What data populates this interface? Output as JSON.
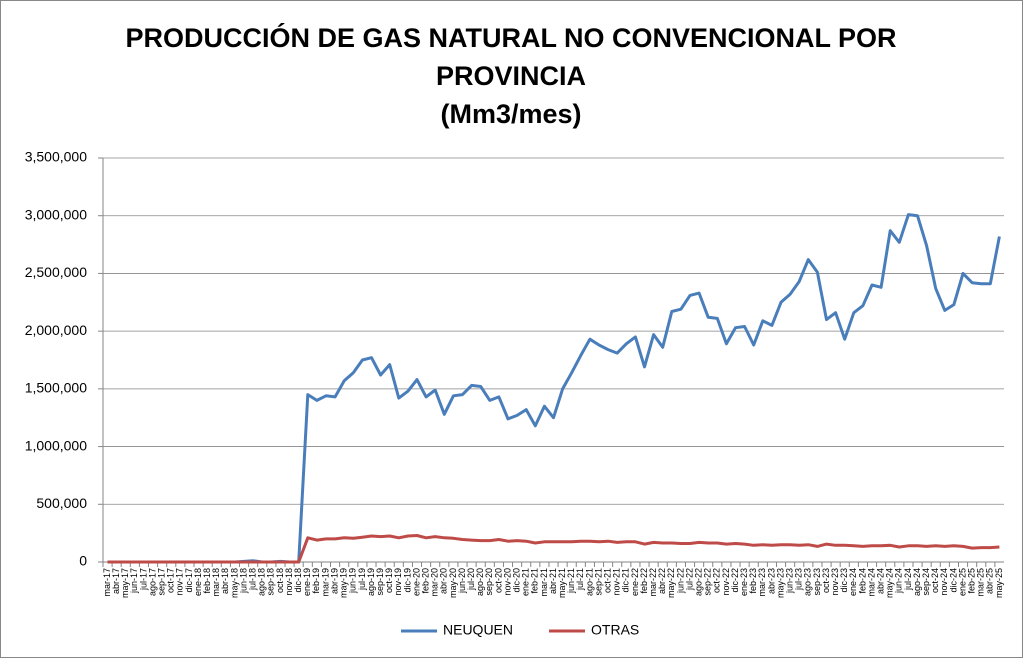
{
  "chart_data": {
    "type": "line",
    "title": "PRODUCCIÓN DE GAS NATURAL NO CONVENCIONAL POR PROVINCIA",
    "subtitle": "(Mm3/mes)",
    "categories": [
      "mar-17",
      "abr-17",
      "may-17",
      "jun-17",
      "jul-17",
      "ago-17",
      "sep-17",
      "oct-17",
      "nov-17",
      "dic-17",
      "ene-18",
      "feb-18",
      "mar-18",
      "abr-18",
      "may-18",
      "jun-18",
      "jul-18",
      "ago-18",
      "sep-18",
      "oct-18",
      "nov-18",
      "dic-18",
      "ene-19",
      "feb-19",
      "mar-19",
      "abr-19",
      "may-19",
      "jun-19",
      "jul-19",
      "ago-19",
      "sep-19",
      "oct-19",
      "nov-19",
      "dic-19",
      "ene-20",
      "feb-20",
      "mar-20",
      "abr-20",
      "may-20",
      "jun-20",
      "jul-20",
      "ago-20",
      "sep-20",
      "oct-20",
      "nov-20",
      "dic-20",
      "ene-21",
      "feb-21",
      "mar-21",
      "abr-21",
      "may-21",
      "jun-21",
      "jul-21",
      "ago-21",
      "sep-21",
      "oct-21",
      "nov-21",
      "dic-21",
      "ene-22",
      "feb-22",
      "mar-22",
      "abr-22",
      "may-22",
      "jun-22",
      "jul-22",
      "ago-22",
      "sep-22",
      "oct-22",
      "nov-22",
      "dic-22",
      "ene-23",
      "feb-23",
      "mar-23",
      "abr-23",
      "may-23",
      "jun-23",
      "jul-23",
      "ago-23",
      "sep-23",
      "oct-23",
      "nov-23",
      "dic-23",
      "ene-24",
      "feb-24",
      "mar-24",
      "abr-24",
      "may-24",
      "jun-24",
      "jul-24",
      "ago-24",
      "sep-24",
      "oct-24",
      "nov-24",
      "dic-24",
      "ene-25",
      "feb-25",
      "mar-25",
      "abr-25",
      "may-25"
    ],
    "series": [
      {
        "name": "NEUQUEN",
        "color": "#4a7ebb",
        "values": [
          0,
          0,
          0,
          0,
          0,
          0,
          0,
          0,
          0,
          0,
          0,
          0,
          0,
          0,
          0,
          5000,
          10000,
          0,
          0,
          5000,
          0,
          0,
          1450000,
          1400000,
          1440000,
          1430000,
          1570000,
          1640000,
          1750000,
          1770000,
          1620000,
          1710000,
          1420000,
          1480000,
          1580000,
          1430000,
          1490000,
          1280000,
          1440000,
          1450000,
          1530000,
          1520000,
          1400000,
          1430000,
          1240000,
          1270000,
          1320000,
          1180000,
          1350000,
          1250000,
          1500000,
          1640000,
          1790000,
          1930000,
          1880000,
          1840000,
          1810000,
          1890000,
          1950000,
          1690000,
          1970000,
          1860000,
          2170000,
          2190000,
          2310000,
          2330000,
          2120000,
          2110000,
          1890000,
          2030000,
          2040000,
          1880000,
          2090000,
          2050000,
          2250000,
          2320000,
          2430000,
          2620000,
          2510000,
          2100000,
          2160000,
          1930000,
          2160000,
          2220000,
          2400000,
          2380000,
          2870000,
          2770000,
          3010000,
          3000000,
          2740000,
          2370000,
          2180000,
          2230000,
          2500000,
          2420000,
          2410000,
          2410000,
          2820000
        ]
      },
      {
        "name": "OTRAS",
        "color": "#be4b48",
        "values": [
          0,
          0,
          0,
          0,
          0,
          0,
          0,
          0,
          0,
          0,
          0,
          0,
          0,
          0,
          0,
          0,
          0,
          0,
          0,
          0,
          0,
          0,
          210000,
          190000,
          200000,
          200000,
          210000,
          205000,
          215000,
          225000,
          220000,
          225000,
          210000,
          225000,
          230000,
          210000,
          220000,
          210000,
          205000,
          195000,
          190000,
          185000,
          185000,
          195000,
          180000,
          185000,
          180000,
          165000,
          175000,
          175000,
          175000,
          175000,
          180000,
          180000,
          175000,
          180000,
          170000,
          175000,
          175000,
          155000,
          170000,
          165000,
          165000,
          160000,
          160000,
          170000,
          165000,
          165000,
          155000,
          160000,
          155000,
          145000,
          150000,
          145000,
          150000,
          150000,
          145000,
          150000,
          135000,
          155000,
          145000,
          145000,
          140000,
          135000,
          140000,
          140000,
          145000,
          130000,
          140000,
          140000,
          135000,
          140000,
          135000,
          140000,
          135000,
          120000,
          125000,
          125000,
          130000
        ]
      }
    ],
    "ylim": [
      0,
      3500000
    ],
    "yticks": [
      0,
      {
        "value": 500000,
        "label": "500,000"
      },
      {
        "value": 1000000,
        "label": "1,000,000"
      },
      {
        "value": 1500000,
        "label": "1,500,000"
      },
      {
        "value": 2000000,
        "label": "2,000,000"
      },
      {
        "value": 2500000,
        "label": "2,500,000"
      },
      {
        "value": 3000000,
        "label": "3,000,000"
      },
      {
        "value": 3500000,
        "label": "3,500,000"
      }
    ],
    "grid": true,
    "legend": "bottom"
  }
}
